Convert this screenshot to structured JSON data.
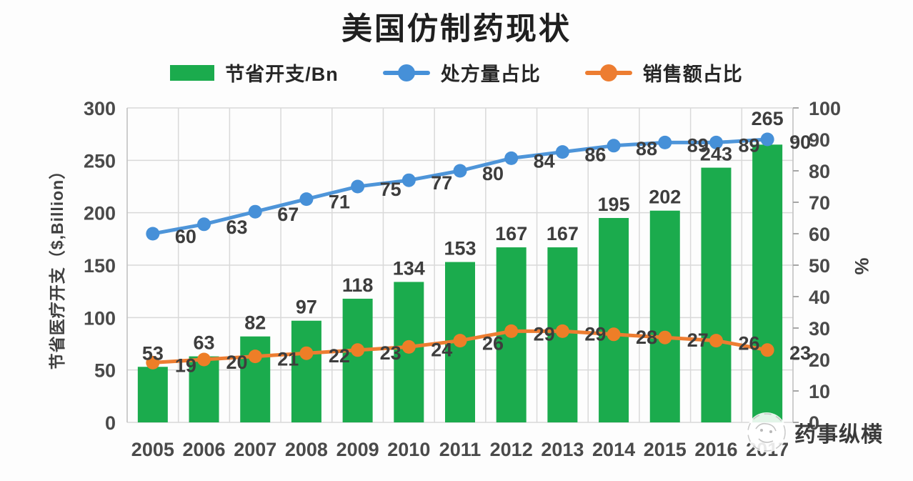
{
  "title": "美国仿制药现状",
  "legend": {
    "items": [
      {
        "label": "节省开支/Bn",
        "color": "#1BAB4D",
        "marker": "bar"
      },
      {
        "label": "处方量占比",
        "color": "#4690D8",
        "marker": "line-dot"
      },
      {
        "label": "销售额占比",
        "color": "#ED7D31",
        "marker": "line-dot"
      }
    ]
  },
  "watermark": {
    "text": "药事纵横",
    "logo": "circular-seal-icon"
  },
  "chart_data": {
    "type": "combo",
    "title": "美国仿制药现状",
    "categories": [
      "2005",
      "2006",
      "2007",
      "2008",
      "2009",
      "2010",
      "2011",
      "2012",
      "2013",
      "2014",
      "2015",
      "2016",
      "2017"
    ],
    "series": [
      {
        "name": "节省开支/Bn",
        "chart": "bar",
        "axis": "left",
        "color": "#1BAB4D",
        "values": [
          53,
          63,
          82,
          97,
          118,
          134,
          153,
          167,
          167,
          195,
          202,
          243,
          265
        ]
      },
      {
        "name": "处方量占比",
        "chart": "line",
        "axis": "right",
        "color": "#4E95D9",
        "marker_color": "#4690D8",
        "values": [
          60,
          63,
          67,
          71,
          75,
          77,
          80,
          84,
          86,
          88,
          89,
          89,
          90
        ]
      },
      {
        "name": "销售额占比",
        "chart": "line",
        "axis": "right",
        "color": "#ED7D31",
        "marker_color": "#EE7E27",
        "values": [
          19,
          20,
          21,
          22,
          23,
          24,
          26,
          29,
          29,
          28,
          27,
          26,
          23
        ]
      }
    ],
    "left_axis": {
      "title": "节省医疗开支（$,Billion）",
      "min": 0,
      "max": 300,
      "step": 50
    },
    "right_axis": {
      "title": "%",
      "min": 0,
      "max": 100,
      "step": 10
    },
    "grid": true,
    "legend_position": "top",
    "grid_color": "#d9d9d9",
    "axis_line_color": "#c3c3c3",
    "label_color": "#3d3d3d"
  }
}
